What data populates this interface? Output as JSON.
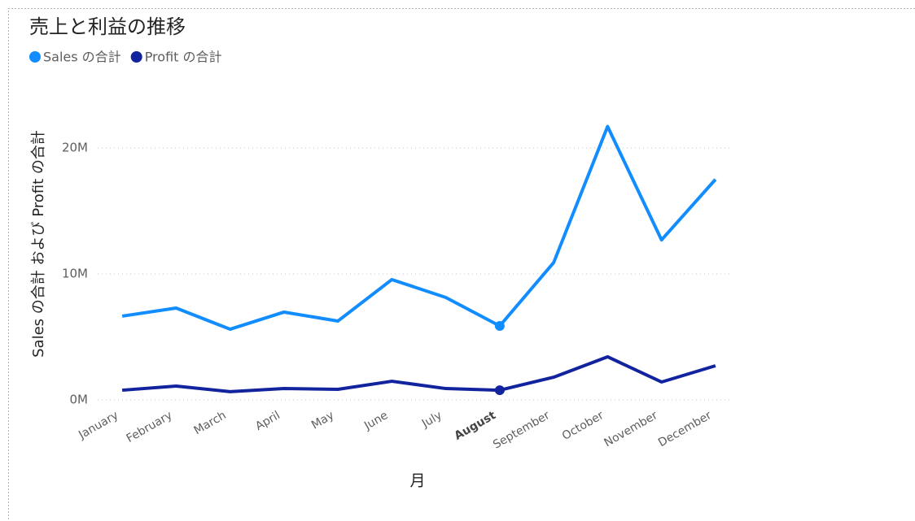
{
  "chart_data": {
    "type": "line",
    "title": "売上と利益の推移",
    "x_label": "月",
    "y_label": "Sales の合計 および Profit の合計",
    "categories": [
      "January",
      "February",
      "March",
      "April",
      "May",
      "June",
      "July",
      "August",
      "September",
      "October",
      "November",
      "December"
    ],
    "series": [
      {
        "name": "Sales の合計",
        "color": "#118DFF",
        "values": [
          6650000,
          7290000,
          5610000,
          6970000,
          6260000,
          9550000,
          8130000,
          5870000,
          10900000,
          21700000,
          12700000,
          17500000
        ]
      },
      {
        "name": "Profit の合計",
        "color": "#12239E",
        "values": [
          770000,
          1100000,
          650000,
          900000,
          840000,
          1480000,
          900000,
          770000,
          1800000,
          3420000,
          1420000,
          2710000
        ]
      }
    ],
    "ylim": [
      0,
      23000000
    ],
    "yticks": [
      {
        "value": 0,
        "label": "0M"
      },
      {
        "value": 10000000,
        "label": "10M"
      },
      {
        "value": 20000000,
        "label": "20M"
      }
    ],
    "grid": true,
    "legend": "top-left",
    "highlighted_category": "August"
  }
}
